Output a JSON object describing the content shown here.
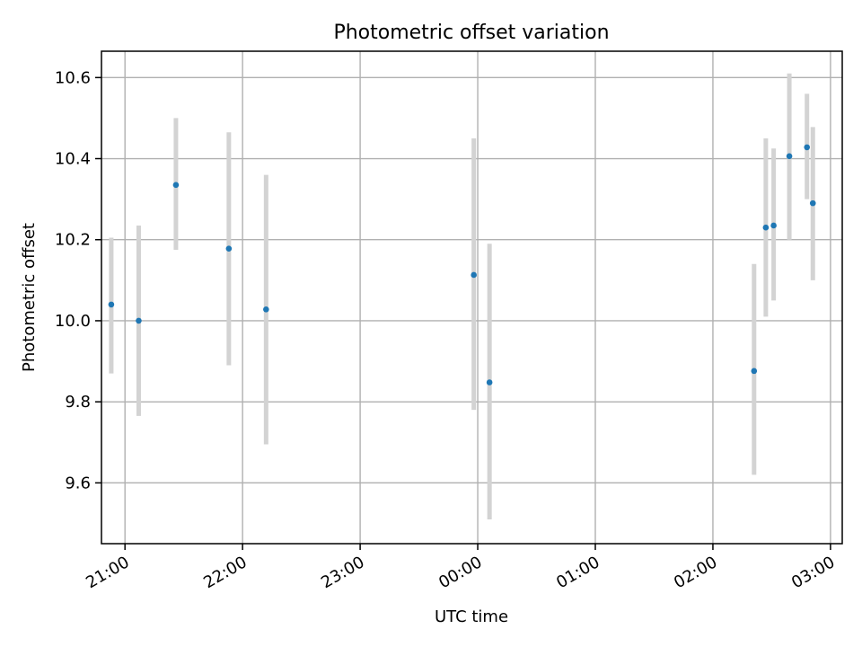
{
  "chart_data": {
    "type": "scatter",
    "title": "Photometric offset variation",
    "xlabel": "UTC time",
    "ylabel": "Photometric offset",
    "x_axis_kind": "time",
    "xlim": [
      "20:48",
      "03:06"
    ],
    "ylim": [
      9.45,
      10.665
    ],
    "x_ticks": [
      "21:00",
      "22:00",
      "23:00",
      "00:00",
      "01:00",
      "02:00",
      "03:00"
    ],
    "y_ticks": [
      "9.6",
      "9.8",
      "10.0",
      "10.2",
      "10.4",
      "10.6"
    ],
    "grid": true,
    "marker_color": "#1f77b4",
    "errorbar_color": "#d3d3d3",
    "series": [
      {
        "points": [
          {
            "x": "20:53",
            "y": 10.04,
            "ylow": 9.87,
            "yhigh": 10.205
          },
          {
            "x": "21:07",
            "y": 10.0,
            "ylow": 9.765,
            "yhigh": 10.235
          },
          {
            "x": "21:26",
            "y": 10.335,
            "ylow": 10.175,
            "yhigh": 10.5
          },
          {
            "x": "21:53",
            "y": 10.178,
            "ylow": 9.89,
            "yhigh": 10.465
          },
          {
            "x": "22:12",
            "y": 10.028,
            "ylow": 9.695,
            "yhigh": 10.36
          },
          {
            "x": "23:58",
            "y": 10.113,
            "ylow": 9.78,
            "yhigh": 10.45
          },
          {
            "x": "00:06",
            "y": 9.848,
            "ylow": 9.51,
            "yhigh": 10.19
          },
          {
            "x": "02:21",
            "y": 9.876,
            "ylow": 9.62,
            "yhigh": 10.14
          },
          {
            "x": "02:27",
            "y": 10.23,
            "ylow": 10.01,
            "yhigh": 10.45
          },
          {
            "x": "02:31",
            "y": 10.235,
            "ylow": 10.05,
            "yhigh": 10.425
          },
          {
            "x": "02:39",
            "y": 10.406,
            "ylow": 10.2,
            "yhigh": 10.61
          },
          {
            "x": "02:48",
            "y": 10.428,
            "ylow": 10.3,
            "yhigh": 10.56
          },
          {
            "x": "02:51",
            "y": 10.29,
            "ylow": 10.1,
            "yhigh": 10.478
          }
        ]
      }
    ]
  }
}
